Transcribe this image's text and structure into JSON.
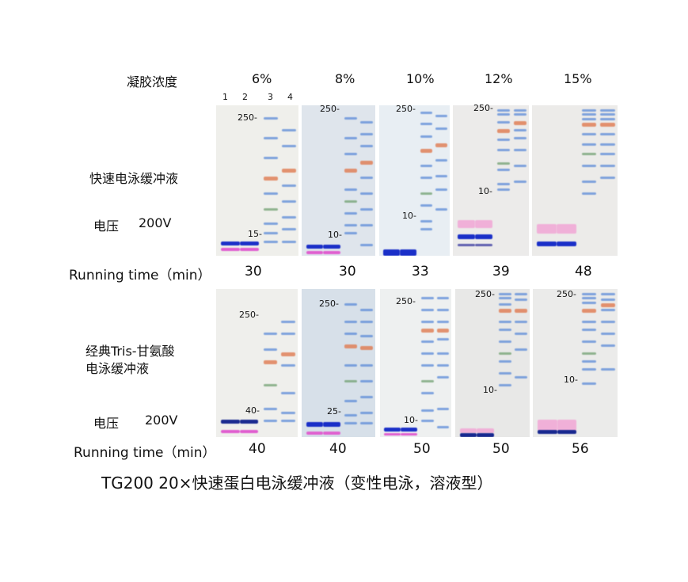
{
  "header": {
    "gel_concentration_label": "凝胶浓度",
    "concentrations": [
      "6%",
      "8%",
      "10%",
      "12%",
      "15%"
    ],
    "lanes": [
      "1",
      "2",
      "3",
      "4"
    ]
  },
  "top": {
    "buffer_label": "快速电泳缓冲液",
    "voltage_label": "电压",
    "voltage_value": "200V",
    "running_time_label": "Running time（min）",
    "running_times": [
      "30",
      "30",
      "33",
      "39",
      "48"
    ],
    "markers": [
      [
        "250-",
        "15-"
      ],
      [
        "250-",
        "10-"
      ],
      [
        "250-",
        "10-"
      ],
      [
        "250-",
        "10-"
      ],
      []
    ]
  },
  "bottom": {
    "buffer_label_line1": "经典Tris-甘氨酸",
    "buffer_label_line2": "电泳缓冲液",
    "voltage_label": "电压",
    "voltage_value": "200V",
    "running_time_label": "Running time（min）",
    "running_times": [
      "40",
      "40",
      "50",
      "50",
      "56"
    ],
    "markers": [
      [
        "250-",
        "40-"
      ],
      [
        "250-",
        "25-"
      ],
      [
        "250-",
        "10-"
      ],
      [
        "250-",
        "10-"
      ],
      [
        "250-",
        "10-"
      ]
    ]
  },
  "caption": "TG200  20×快速蛋白电泳缓冲液（变性电泳，溶液型）",
  "colors": {
    "dye_blue": "#1a2fc8",
    "dye_pink": "#e060d0",
    "ladder_blue": "#5a8ad8",
    "ladder_orange": "#e07a50",
    "ladder_green": "#70a070"
  }
}
